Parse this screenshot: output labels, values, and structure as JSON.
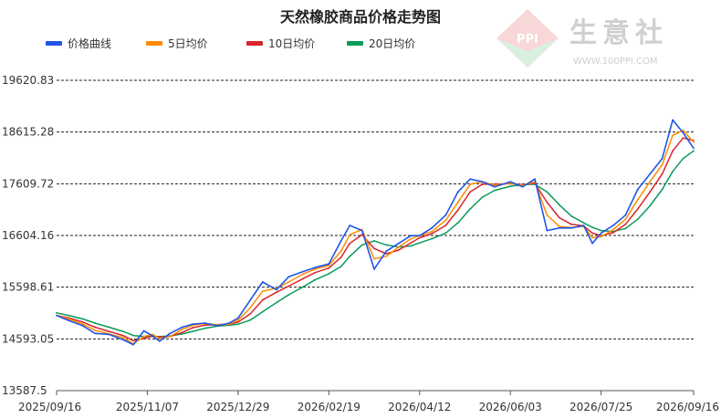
{
  "watermark": {
    "brand": "生意社",
    "url": "WWW.100PPI.COM",
    "logo_text": "PPI"
  },
  "colors": {
    "price": "#1f56e6",
    "ma5": "#ff8c00",
    "ma10": "#d8262c",
    "ma20": "#0a9a5a",
    "grid": "#222222",
    "axis": "#555555"
  },
  "chart_data": {
    "type": "line",
    "title": "天然橡胶商品价格走势图",
    "xlabel": "",
    "ylabel": "",
    "ylim": [
      13587.5,
      19620.83
    ],
    "y_ticks": [
      "13587.5",
      "14593.05",
      "15598.61",
      "16604.16",
      "17609.72",
      "18615.28",
      "19620.83"
    ],
    "x_ticks": [
      "2025/09/16",
      "2025/11/07",
      "2025/12/29",
      "2026/02/19",
      "2026/04/12",
      "2026/06/03",
      "2026/07/25",
      "2026/09/16"
    ],
    "x_range": [
      "2025/09/16",
      "2026/09/16"
    ],
    "grid": "horizontal dashed",
    "legend_position": "top-left",
    "series": [
      {
        "name": "价格曲线",
        "color_key": "price",
        "points": [
          [
            "2025/09/16",
            15050
          ],
          [
            "2025/09/23",
            14950
          ],
          [
            "2025/10/01",
            14850
          ],
          [
            "2025/10/08",
            14700
          ],
          [
            "2025/10/16",
            14680
          ],
          [
            "2025/10/24",
            14580
          ],
          [
            "2025/10/30",
            14480
          ],
          [
            "2025/11/05",
            14750
          ],
          [
            "2025/11/10",
            14650
          ],
          [
            "2025/11/14",
            14550
          ],
          [
            "2025/11/20",
            14700
          ],
          [
            "2025/11/27",
            14820
          ],
          [
            "2025/12/03",
            14880
          ],
          [
            "2025/12/10",
            14900
          ],
          [
            "2025/12/17",
            14850
          ],
          [
            "2025/12/24",
            14900
          ],
          [
            "2025/12/29",
            15000
          ],
          [
            "2026/01/05",
            15350
          ],
          [
            "2026/01/12",
            15700
          ],
          [
            "2026/01/20",
            15550
          ],
          [
            "2026/01/27",
            15800
          ],
          [
            "2026/02/04",
            15900
          ],
          [
            "2026/02/11",
            15980
          ],
          [
            "2026/02/19",
            16050
          ],
          [
            "2026/02/26",
            16500
          ],
          [
            "2026/03/03",
            16800
          ],
          [
            "2026/03/10",
            16700
          ],
          [
            "2026/03/17",
            15950
          ],
          [
            "2026/03/24",
            16300
          ],
          [
            "2026/03/31",
            16450
          ],
          [
            "2026/04/07",
            16600
          ],
          [
            "2026/04/12",
            16600
          ],
          [
            "2026/04/19",
            16750
          ],
          [
            "2026/04/27",
            17000
          ],
          [
            "2026/05/04",
            17450
          ],
          [
            "2026/05/11",
            17700
          ],
          [
            "2026/05/18",
            17650
          ],
          [
            "2026/05/25",
            17550
          ],
          [
            "2026/06/03",
            17650
          ],
          [
            "2026/06/10",
            17550
          ],
          [
            "2026/06/17",
            17700
          ],
          [
            "2026/06/24",
            16700
          ],
          [
            "2026/07/01",
            16750
          ],
          [
            "2026/07/08",
            16750
          ],
          [
            "2026/07/15",
            16800
          ],
          [
            "2026/07/20",
            16450
          ],
          [
            "2026/07/25",
            16650
          ],
          [
            "2026/08/01",
            16800
          ],
          [
            "2026/08/08",
            17000
          ],
          [
            "2026/08/15",
            17500
          ],
          [
            "2026/08/22",
            17800
          ],
          [
            "2026/08/29",
            18100
          ],
          [
            "2026/09/04",
            18850
          ],
          [
            "2026/09/10",
            18600
          ],
          [
            "2026/09/16",
            18300
          ]
        ]
      },
      {
        "name": "5日均价",
        "color_key": "ma5",
        "points": [
          [
            "2025/09/16",
            15050
          ],
          [
            "2025/09/23",
            14980
          ],
          [
            "2025/10/01",
            14880
          ],
          [
            "2025/10/08",
            14760
          ],
          [
            "2025/10/16",
            14690
          ],
          [
            "2025/10/24",
            14620
          ],
          [
            "2025/10/30",
            14500
          ],
          [
            "2025/11/05",
            14640
          ],
          [
            "2025/11/10",
            14680
          ],
          [
            "2025/11/14",
            14600
          ],
          [
            "2025/11/20",
            14640
          ],
          [
            "2025/11/27",
            14780
          ],
          [
            "2025/12/03",
            14860
          ],
          [
            "2025/12/10",
            14890
          ],
          [
            "2025/12/17",
            14870
          ],
          [
            "2025/12/24",
            14880
          ],
          [
            "2025/12/29",
            14960
          ],
          [
            "2026/01/05",
            15200
          ],
          [
            "2026/01/12",
            15520
          ],
          [
            "2026/01/20",
            15580
          ],
          [
            "2026/01/27",
            15700
          ],
          [
            "2026/02/04",
            15850
          ],
          [
            "2026/02/11",
            15950
          ],
          [
            "2026/02/19",
            16020
          ],
          [
            "2026/02/26",
            16300
          ],
          [
            "2026/03/03",
            16620
          ],
          [
            "2026/03/10",
            16720
          ],
          [
            "2026/03/17",
            16150
          ],
          [
            "2026/03/24",
            16200
          ],
          [
            "2026/03/31",
            16380
          ],
          [
            "2026/04/07",
            16540
          ],
          [
            "2026/04/12",
            16600
          ],
          [
            "2026/04/19",
            16680
          ],
          [
            "2026/04/27",
            16900
          ],
          [
            "2026/05/04",
            17250
          ],
          [
            "2026/05/11",
            17600
          ],
          [
            "2026/05/18",
            17650
          ],
          [
            "2026/05/25",
            17580
          ],
          [
            "2026/06/03",
            17620
          ],
          [
            "2026/06/10",
            17580
          ],
          [
            "2026/06/17",
            17650
          ],
          [
            "2026/06/24",
            17000
          ],
          [
            "2026/07/01",
            16780
          ],
          [
            "2026/07/08",
            16760
          ],
          [
            "2026/07/15",
            16780
          ],
          [
            "2026/07/20",
            16560
          ],
          [
            "2026/07/25",
            16580
          ],
          [
            "2026/08/01",
            16720
          ],
          [
            "2026/08/08",
            16920
          ],
          [
            "2026/08/15",
            17300
          ],
          [
            "2026/08/22",
            17650
          ],
          [
            "2026/08/29",
            17980
          ],
          [
            "2026/09/04",
            18550
          ],
          [
            "2026/09/10",
            18650
          ],
          [
            "2026/09/16",
            18420
          ]
        ]
      },
      {
        "name": "10日均价",
        "color_key": "ma10",
        "points": [
          [
            "2025/09/16",
            15050
          ],
          [
            "2025/09/23",
            15000
          ],
          [
            "2025/10/01",
            14920
          ],
          [
            "2025/10/08",
            14820
          ],
          [
            "2025/10/16",
            14740
          ],
          [
            "2025/10/24",
            14660
          ],
          [
            "2025/10/30",
            14560
          ],
          [
            "2025/11/05",
            14600
          ],
          [
            "2025/11/10",
            14650
          ],
          [
            "2025/11/14",
            14630
          ],
          [
            "2025/11/20",
            14640
          ],
          [
            "2025/11/27",
            14720
          ],
          [
            "2025/12/03",
            14810
          ],
          [
            "2025/12/10",
            14860
          ],
          [
            "2025/12/17",
            14870
          ],
          [
            "2025/12/24",
            14880
          ],
          [
            "2025/12/29",
            14920
          ],
          [
            "2026/01/05",
            15080
          ],
          [
            "2026/01/12",
            15350
          ],
          [
            "2026/01/20",
            15500
          ],
          [
            "2026/01/27",
            15620
          ],
          [
            "2026/02/04",
            15760
          ],
          [
            "2026/02/11",
            15880
          ],
          [
            "2026/02/19",
            15970
          ],
          [
            "2026/02/26",
            16180
          ],
          [
            "2026/03/03",
            16450
          ],
          [
            "2026/03/10",
            16620
          ],
          [
            "2026/03/17",
            16350
          ],
          [
            "2026/03/24",
            16250
          ],
          [
            "2026/03/31",
            16320
          ],
          [
            "2026/04/07",
            16460
          ],
          [
            "2026/04/12",
            16560
          ],
          [
            "2026/04/19",
            16640
          ],
          [
            "2026/04/27",
            16800
          ],
          [
            "2026/05/04",
            17100
          ],
          [
            "2026/05/11",
            17450
          ],
          [
            "2026/05/18",
            17600
          ],
          [
            "2026/05/25",
            17600
          ],
          [
            "2026/06/03",
            17610
          ],
          [
            "2026/06/10",
            17590
          ],
          [
            "2026/06/17",
            17620
          ],
          [
            "2026/06/24",
            17250
          ],
          [
            "2026/07/01",
            16950
          ],
          [
            "2026/07/08",
            16820
          ],
          [
            "2026/07/15",
            16790
          ],
          [
            "2026/07/20",
            16650
          ],
          [
            "2026/07/25",
            16600
          ],
          [
            "2026/08/01",
            16660
          ],
          [
            "2026/08/08",
            16820
          ],
          [
            "2026/08/15",
            17120
          ],
          [
            "2026/08/22",
            17450
          ],
          [
            "2026/08/29",
            17800
          ],
          [
            "2026/09/04",
            18250
          ],
          [
            "2026/09/10",
            18500
          ],
          [
            "2026/09/16",
            18450
          ]
        ]
      },
      {
        "name": "20日均价",
        "color_key": "ma20",
        "points": [
          [
            "2025/09/16",
            15100
          ],
          [
            "2025/09/23",
            15050
          ],
          [
            "2025/10/01",
            14980
          ],
          [
            "2025/10/08",
            14900
          ],
          [
            "2025/10/16",
            14820
          ],
          [
            "2025/10/24",
            14740
          ],
          [
            "2025/10/30",
            14660
          ],
          [
            "2025/11/05",
            14640
          ],
          [
            "2025/11/10",
            14640
          ],
          [
            "2025/11/14",
            14640
          ],
          [
            "2025/11/20",
            14650
          ],
          [
            "2025/11/27",
            14690
          ],
          [
            "2025/12/03",
            14740
          ],
          [
            "2025/12/10",
            14800
          ],
          [
            "2025/12/17",
            14840
          ],
          [
            "2025/12/24",
            14860
          ],
          [
            "2025/12/29",
            14880
          ],
          [
            "2026/01/05",
            14960
          ],
          [
            "2026/01/12",
            15120
          ],
          [
            "2026/01/20",
            15300
          ],
          [
            "2026/01/27",
            15450
          ],
          [
            "2026/02/04",
            15600
          ],
          [
            "2026/02/11",
            15740
          ],
          [
            "2026/02/19",
            15860
          ],
          [
            "2026/02/26",
            16000
          ],
          [
            "2026/03/03",
            16200
          ],
          [
            "2026/03/10",
            16420
          ],
          [
            "2026/03/17",
            16500
          ],
          [
            "2026/03/24",
            16420
          ],
          [
            "2026/03/31",
            16380
          ],
          [
            "2026/04/07",
            16400
          ],
          [
            "2026/04/12",
            16460
          ],
          [
            "2026/04/19",
            16540
          ],
          [
            "2026/04/27",
            16650
          ],
          [
            "2026/05/04",
            16850
          ],
          [
            "2026/05/11",
            17120
          ],
          [
            "2026/05/18",
            17350
          ],
          [
            "2026/05/25",
            17480
          ],
          [
            "2026/06/03",
            17560
          ],
          [
            "2026/06/10",
            17590
          ],
          [
            "2026/06/17",
            17600
          ],
          [
            "2026/06/24",
            17450
          ],
          [
            "2026/07/01",
            17200
          ],
          [
            "2026/07/08",
            16980
          ],
          [
            "2026/07/15",
            16850
          ],
          [
            "2026/07/20",
            16760
          ],
          [
            "2026/07/25",
            16700
          ],
          [
            "2026/08/01",
            16680
          ],
          [
            "2026/08/08",
            16740
          ],
          [
            "2026/08/15",
            16920
          ],
          [
            "2026/08/22",
            17180
          ],
          [
            "2026/08/29",
            17500
          ],
          [
            "2026/09/04",
            17850
          ],
          [
            "2026/09/10",
            18100
          ],
          [
            "2026/09/16",
            18250
          ]
        ]
      }
    ]
  }
}
